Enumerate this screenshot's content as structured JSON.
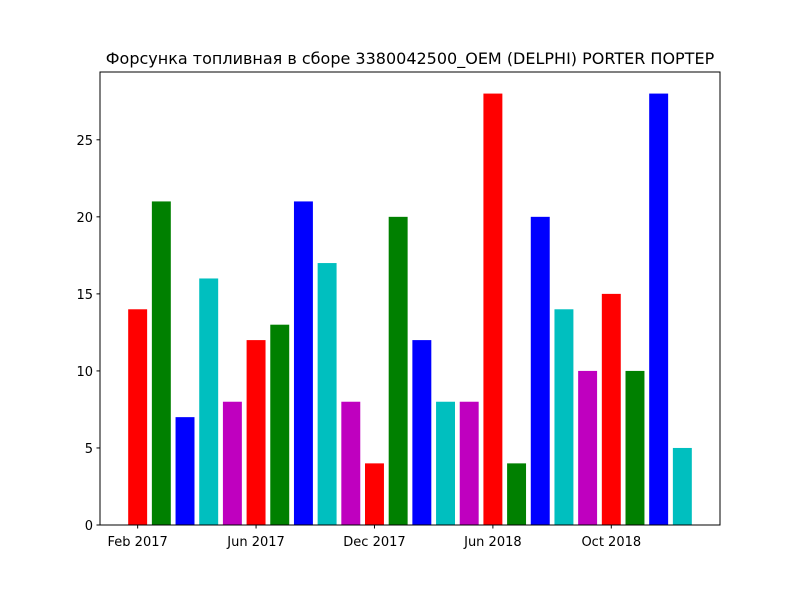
{
  "chart_data": {
    "type": "bar",
    "title": "Форсунка топливная в сборе 3380042500_OEM (DELPHI) PORTER ПОРТЕР",
    "categories": [
      "Feb 2017",
      null,
      null,
      null,
      null,
      "Jun 2017",
      null,
      null,
      null,
      null,
      "Dec 2017",
      null,
      null,
      null,
      null,
      "Jun 2018",
      null,
      null,
      null,
      null,
      "Oct 2018",
      null,
      null,
      null
    ],
    "values": [
      14,
      21,
      7,
      16,
      8,
      12,
      13,
      21,
      17,
      8,
      4,
      20,
      12,
      8,
      8,
      28,
      4,
      20,
      14,
      10,
      15,
      10,
      28,
      5
    ],
    "colors": [
      "#ff0000",
      "#008000",
      "#0000ff",
      "#00bfbf",
      "#bf00bf",
      "#ff0000",
      "#008000",
      "#0000ff",
      "#00bfbf",
      "#bf00bf",
      "#ff0000",
      "#008000",
      "#0000ff",
      "#00bfbf",
      "#bf00bf",
      "#ff0000",
      "#008000",
      "#0000ff",
      "#00bfbf",
      "#bf00bf",
      "#ff0000",
      "#008000",
      "#0000ff",
      "#00bfbf"
    ],
    "ylim": [
      0,
      29.4
    ],
    "yticks": [
      0,
      5,
      10,
      15,
      20,
      25
    ],
    "grid": false
  }
}
